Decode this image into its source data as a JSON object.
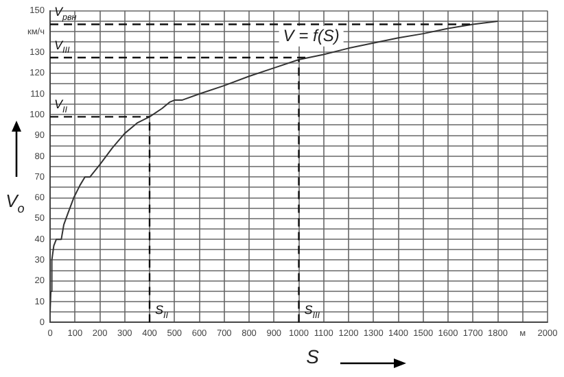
{
  "chart_data": {
    "type": "line",
    "xlabel": "S",
    "ylabel": "V$_{o}$",
    "x": [
      0,
      3,
      7,
      15,
      25,
      45,
      55,
      70,
      95,
      120,
      140,
      160,
      200,
      250,
      300,
      350,
      400,
      450,
      480,
      500,
      530,
      600,
      700,
      800,
      900,
      1000,
      1100,
      1200,
      1300,
      1400,
      1500,
      1600,
      1700,
      1800
    ],
    "series": [
      {
        "color": "#333333",
        "values": [
          5,
          15,
          30,
          37,
          40,
          40,
          47,
          52,
          60,
          66,
          70,
          70,
          76,
          84,
          91,
          96,
          99,
          103,
          106,
          107,
          107,
          110,
          114,
          118.5,
          122.5,
          126.5,
          129,
          132,
          134.5,
          137,
          139,
          141.5,
          143.5,
          145
        ]
      }
    ],
    "xlim": [
      0,
      2000
    ],
    "xticks": [
      0,
      100,
      200,
      300,
      400,
      500,
      600,
      700,
      800,
      900,
      1000,
      1100,
      1200,
      1300,
      1400,
      1500,
      1600,
      1700,
      1800,
      {
        "value": 1900,
        "label": "м"
      },
      2000
    ],
    "ylim": [
      0,
      150
    ],
    "yticks": [
      0,
      {
        "value": 5,
        "label": null
      },
      10,
      {
        "value": 15,
        "label": null
      },
      20,
      {
        "value": 25,
        "label": null
      },
      30,
      {
        "value": 35,
        "label": null
      },
      40,
      {
        "value": 45,
        "label": null
      },
      50,
      {
        "value": 55,
        "label": null
      },
      60,
      {
        "value": 65,
        "label": null
      },
      70,
      {
        "value": 75,
        "label": null
      },
      80,
      {
        "value": 85,
        "label": null
      },
      90,
      {
        "value": 95,
        "label": null
      },
      100,
      {
        "value": 105,
        "label": null
      },
      110,
      {
        "value": 115,
        "label": null
      },
      120,
      {
        "value": 125,
        "label": null
      },
      130,
      {
        "value": 135,
        "label": null
      },
      {
        "value": 140,
        "label": "км/ч"
      },
      {
        "value": 145,
        "label": null
      },
      150
    ],
    "ref_lines": [
      {
        "axis": "y",
        "value": 143.5,
        "label": "V$_{рвн}$",
        "color": "#111111",
        "line_style": "dashed"
      },
      {
        "axis": "y",
        "value": 127.5,
        "label": "V$_{III}$",
        "color": "#111111",
        "line_style": "dashed"
      },
      {
        "axis": "y",
        "value": 99,
        "label": "V$_{II}$",
        "color": "#111111",
        "line_style": "dashed"
      },
      {
        "axis": "x",
        "value": 400,
        "label": "S$_{II}$",
        "color": "#111111",
        "line_style": "dashed"
      },
      {
        "axis": "x",
        "value": 1000,
        "label": "S$_{III}$",
        "color": "#111111",
        "line_style": "dashed"
      }
    ],
    "annotations": [
      "V = f(S)"
    ],
    "grid": true,
    "legend": false,
    "marker": "none",
    "line_style": "solid"
  }
}
